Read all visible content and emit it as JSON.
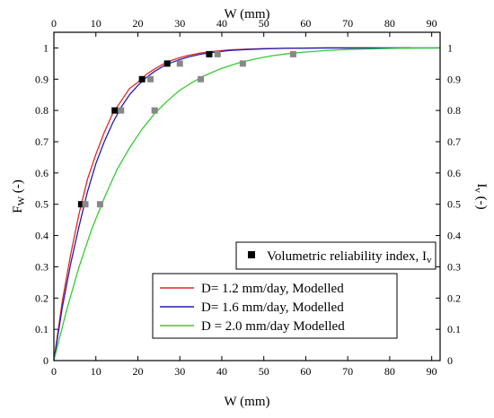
{
  "chart_data": {
    "type": "scatter",
    "x_range": [
      0,
      92
    ],
    "y_range": [
      0,
      1.05
    ],
    "bottom_axis": {
      "label": "W (mm)",
      "ticks": [
        0,
        10,
        20,
        30,
        40,
        50,
        60,
        70,
        80,
        90
      ],
      "tick_labels": [
        "0",
        "10",
        "20",
        "30",
        "40",
        "50",
        "60",
        "70",
        "80",
        "90"
      ]
    },
    "top_axis": {
      "label": "W (mm)",
      "ticks": [
        0,
        10,
        20,
        30,
        40,
        50,
        60,
        70,
        80,
        90
      ],
      "tick_labels": [
        "0",
        "10",
        "20",
        "30",
        "40",
        "50",
        "60",
        "70",
        "80",
        "90"
      ]
    },
    "left_axis": {
      "label_main": "F",
      "label_sub": "W",
      "label_rest": " (-)",
      "ticks": [
        0,
        0.1,
        0.2,
        0.3,
        0.4,
        0.5,
        0.6,
        0.7,
        0.8,
        0.9,
        1
      ],
      "tick_labels": [
        "0",
        "0.1",
        "0.2",
        "0.3",
        "0.4",
        "0.5",
        "0.6",
        "0.7",
        "0.8",
        "0.9",
        "1"
      ]
    },
    "right_axis": {
      "label_main": "I",
      "label_sub": "v",
      "label_rest": " (-)",
      "ticks": [
        0,
        0.1,
        0.2,
        0.3,
        0.4,
        0.5,
        0.6,
        0.7,
        0.8,
        0.9,
        1
      ],
      "tick_labels": [
        "0",
        "0.1",
        "0.2",
        "0.3",
        "0.4",
        "0.5",
        "0.6",
        "0.7",
        "0.8",
        "0.9",
        "1"
      ]
    },
    "series": [
      {
        "name": "D= 1.2 mm/day, Modelled",
        "kind": "line",
        "color": "#e32626",
        "points": [
          [
            0,
            0
          ],
          [
            2,
            0.19
          ],
          [
            4,
            0.34
          ],
          [
            6,
            0.47
          ],
          [
            8,
            0.58
          ],
          [
            10,
            0.66
          ],
          [
            12,
            0.73
          ],
          [
            14,
            0.79
          ],
          [
            16,
            0.83
          ],
          [
            18,
            0.87
          ],
          [
            20,
            0.89
          ],
          [
            22,
            0.915
          ],
          [
            24,
            0.933
          ],
          [
            26,
            0.948
          ],
          [
            28,
            0.96
          ],
          [
            30,
            0.969
          ],
          [
            32,
            0.976
          ],
          [
            35,
            0.984
          ],
          [
            38,
            0.989
          ],
          [
            42,
            0.994
          ],
          [
            46,
            0.996
          ],
          [
            50,
            0.998
          ],
          [
            56,
            0.999
          ],
          [
            65,
            1.0
          ],
          [
            75,
            1.0
          ],
          [
            85,
            1.0
          ]
        ]
      },
      {
        "name": "D= 1.6 mm/day, Modelled",
        "kind": "line",
        "color": "#1f1fb4",
        "points": [
          [
            0,
            0
          ],
          [
            2,
            0.17
          ],
          [
            4,
            0.31
          ],
          [
            6,
            0.43
          ],
          [
            8,
            0.54
          ],
          [
            10,
            0.63
          ],
          [
            12,
            0.7
          ],
          [
            14,
            0.76
          ],
          [
            16,
            0.81
          ],
          [
            18,
            0.85
          ],
          [
            20,
            0.88
          ],
          [
            22,
            0.905
          ],
          [
            24,
            0.925
          ],
          [
            26,
            0.941
          ],
          [
            28,
            0.953
          ],
          [
            30,
            0.963
          ],
          [
            32,
            0.971
          ],
          [
            35,
            0.98
          ],
          [
            38,
            0.986
          ],
          [
            42,
            0.992
          ],
          [
            46,
            0.995
          ],
          [
            50,
            0.997
          ],
          [
            56,
            0.999
          ],
          [
            65,
            1.0
          ],
          [
            75,
            1.0
          ],
          [
            85,
            1.0
          ],
          [
            92,
            1.0
          ]
        ]
      },
      {
        "name": "D = 2.0 mm/day Modelled",
        "kind": "line",
        "color": "#33cc33",
        "points": [
          [
            0,
            0
          ],
          [
            3,
            0.16
          ],
          [
            6,
            0.3
          ],
          [
            9,
            0.42
          ],
          [
            12,
            0.52
          ],
          [
            15,
            0.61
          ],
          [
            18,
            0.68
          ],
          [
            21,
            0.74
          ],
          [
            24,
            0.79
          ],
          [
            27,
            0.83
          ],
          [
            30,
            0.865
          ],
          [
            33,
            0.89
          ],
          [
            36,
            0.912
          ],
          [
            40,
            0.935
          ],
          [
            44,
            0.952
          ],
          [
            48,
            0.965
          ],
          [
            52,
            0.975
          ],
          [
            56,
            0.982
          ],
          [
            60,
            0.987
          ],
          [
            65,
            0.992
          ],
          [
            70,
            0.995
          ],
          [
            76,
            0.997
          ],
          [
            82,
            0.999
          ],
          [
            92,
            1.0
          ]
        ]
      },
      {
        "name": "Volumetric reliability index, I",
        "name_sub": "v",
        "kind": "markers",
        "color": "#000000",
        "points": [
          [
            6.5,
            0.5
          ],
          [
            14.5,
            0.8
          ],
          [
            21,
            0.9
          ],
          [
            27,
            0.95
          ],
          [
            37,
            0.98
          ]
        ]
      },
      {
        "name": "",
        "kind": "markers",
        "color": "#888888",
        "points": [
          [
            7.5,
            0.5
          ],
          [
            16,
            0.8
          ],
          [
            23,
            0.9
          ],
          [
            30,
            0.95
          ],
          [
            39,
            0.98
          ],
          [
            11,
            0.5
          ],
          [
            24,
            0.8
          ],
          [
            35,
            0.9
          ],
          [
            45,
            0.95
          ],
          [
            57,
            0.98
          ]
        ]
      }
    ],
    "legends": [
      {
        "entries": [
          "Volumetric reliability index, I"
        ]
      },
      {
        "entries": [
          "D= 1.2 mm/day, Modelled",
          "D= 1.6 mm/day, Modelled",
          "D = 2.0 mm/day Modelled"
        ]
      }
    ],
    "grid": false
  }
}
